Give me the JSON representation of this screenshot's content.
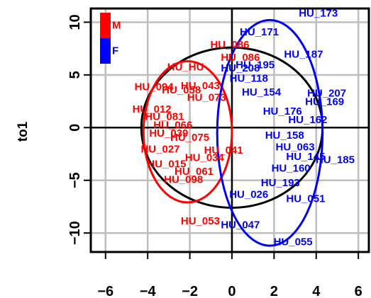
{
  "chart_data": {
    "type": "scatter",
    "title": "",
    "xlabel": "",
    "ylabel": "to1",
    "xlim": [
      -6.7,
      6.5
    ],
    "ylim": [
      -11.8,
      11.3
    ],
    "x_ticks": [
      "−6",
      "−4",
      "−2",
      "0",
      "2",
      "4",
      "6"
    ],
    "y_ticks": [
      "−10",
      "−5",
      "0",
      "5",
      "10"
    ],
    "x_tick_values": [
      -6,
      -4,
      -2,
      0,
      2,
      4,
      6
    ],
    "y_tick_values": [
      -10,
      -5,
      0,
      5,
      10
    ],
    "grid": true,
    "legend": {
      "position": "top-left",
      "entries": [
        {
          "label": "M",
          "color": "#ff0000"
        },
        {
          "label": "F",
          "color": "#0000ff"
        }
      ]
    },
    "ellipses": [
      {
        "name": "all",
        "color": "#000000",
        "cx": 0.0,
        "cy": 0.0,
        "rx": 4.3,
        "ry": 7.6
      },
      {
        "name": "M",
        "color": "#ff0000",
        "cx": -2.1,
        "cy": -0.4,
        "rx": 2.1,
        "ry": 6.7
      },
      {
        "name": "F",
        "color": "#0000ff",
        "cx": 1.8,
        "cy": -0.5,
        "rx": 2.5,
        "ry": 10.7
      }
    ],
    "series": [
      {
        "name": "M",
        "color": "#ff0000",
        "points": [
          {
            "label": "HU_086",
            "x": -0.1,
            "y": 7.8
          },
          {
            "label": "HU_086",
            "x": 0.4,
            "y": 6.6
          },
          {
            "label": "HU_HU",
            "x": -2.2,
            "y": 5.7
          },
          {
            "label": "HU_094",
            "x": -3.7,
            "y": 3.8
          },
          {
            "label": "HU_058",
            "x": -2.4,
            "y": 3.5
          },
          {
            "label": "HU_043",
            "x": -1.5,
            "y": 3.9
          },
          {
            "label": "HU_073",
            "x": -1.2,
            "y": 2.8
          },
          {
            "label": "HU_012",
            "x": -3.8,
            "y": 1.7
          },
          {
            "label": "HU_081",
            "x": -3.2,
            "y": 1.0
          },
          {
            "label": "HU_066",
            "x": -2.8,
            "y": 0.2
          },
          {
            "label": "HU_039",
            "x": -3.0,
            "y": -0.6
          },
          {
            "label": "HU_027",
            "x": -3.4,
            "y": -2.1
          },
          {
            "label": "HU_075",
            "x": -2.0,
            "y": -1.0
          },
          {
            "label": "HU_034",
            "x": -1.3,
            "y": -2.9
          },
          {
            "label": "HU_015",
            "x": -3.1,
            "y": -3.5
          },
          {
            "label": "HU_061",
            "x": -1.8,
            "y": -4.2
          },
          {
            "label": "HU_098",
            "x": -2.3,
            "y": -5.0
          },
          {
            "label": "HU_041",
            "x": -0.4,
            "y": -2.2
          },
          {
            "label": "HU_053",
            "x": -1.5,
            "y": -8.9
          }
        ]
      },
      {
        "name": "F",
        "color": "#0000ff",
        "points": [
          {
            "label": "HU_173",
            "x": 4.1,
            "y": 10.8
          },
          {
            "label": "HU_171",
            "x": 1.3,
            "y": 9.0
          },
          {
            "label": "HU_187",
            "x": 3.4,
            "y": 6.9
          },
          {
            "label": "HU_208",
            "x": 0.4,
            "y": 5.6
          },
          {
            "label": "HU_195",
            "x": 1.1,
            "y": 5.9
          },
          {
            "label": "HU_118",
            "x": 0.8,
            "y": 4.6
          },
          {
            "label": "HU_154",
            "x": 1.4,
            "y": 3.3
          },
          {
            "label": "HU_207",
            "x": 4.5,
            "y": 3.2
          },
          {
            "label": "HU_169",
            "x": 4.4,
            "y": 2.4
          },
          {
            "label": "HU_176",
            "x": 2.4,
            "y": 1.5
          },
          {
            "label": "HU_162",
            "x": 3.6,
            "y": 0.7
          },
          {
            "label": "HU_158",
            "x": 2.5,
            "y": -0.8
          },
          {
            "label": "HU_063",
            "x": 3.0,
            "y": -1.9
          },
          {
            "label": "HU_145",
            "x": 3.5,
            "y": -2.8
          },
          {
            "label": "HU_185",
            "x": 4.9,
            "y": -3.1
          },
          {
            "label": "HU_160",
            "x": 2.8,
            "y": -3.9
          },
          {
            "label": "HU_193",
            "x": 2.3,
            "y": -5.3
          },
          {
            "label": "HU_026",
            "x": 0.8,
            "y": -6.4
          },
          {
            "label": "HU_051",
            "x": 3.5,
            "y": -6.8
          },
          {
            "label": "HU_047",
            "x": 0.4,
            "y": -9.3
          },
          {
            "label": "HU_055",
            "x": 2.9,
            "y": -10.9
          }
        ]
      }
    ]
  }
}
